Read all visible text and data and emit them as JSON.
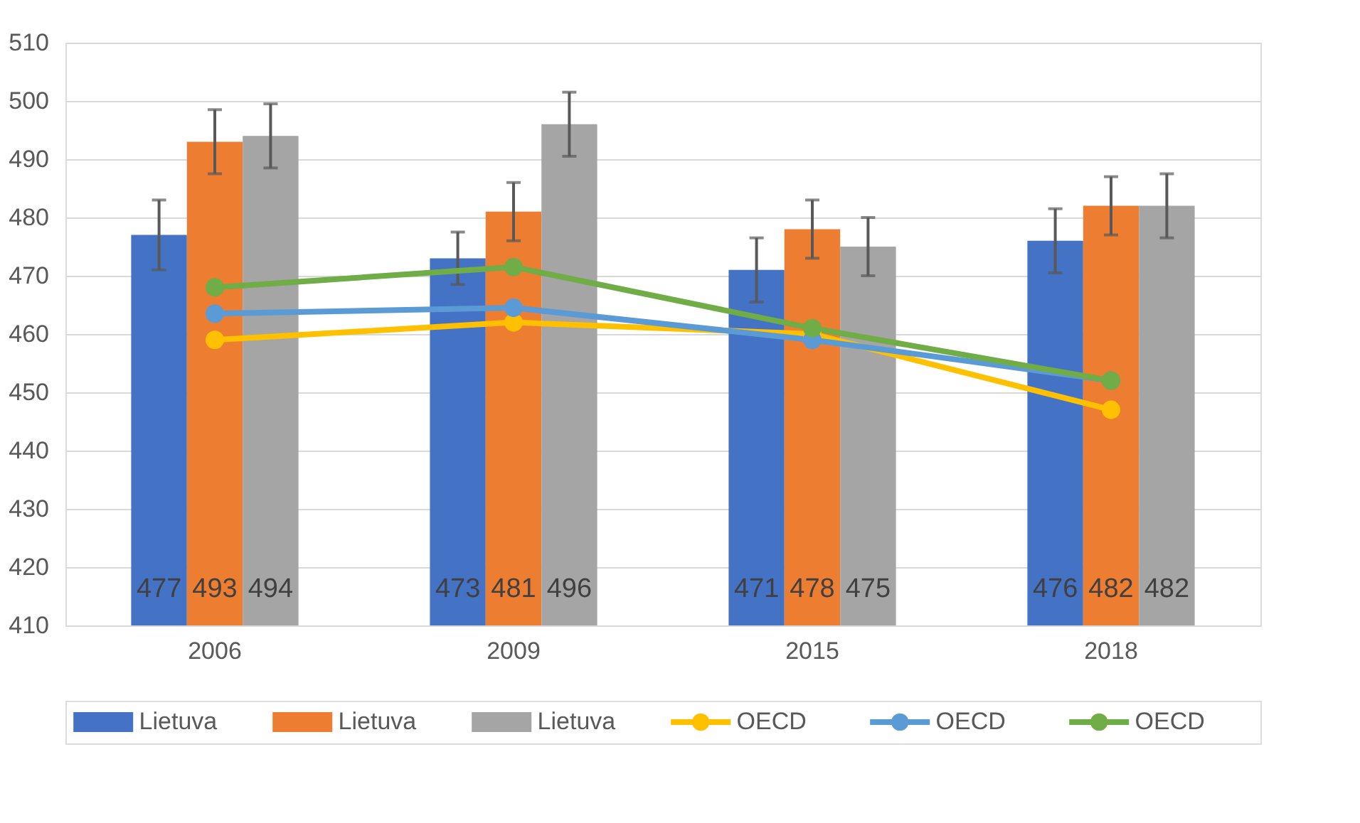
{
  "chart_data": {
    "type": "bar",
    "categories": [
      "2006",
      "2009",
      "2015",
      "2018"
    ],
    "series": [
      {
        "name": "Lietuva",
        "color": "#4472c4",
        "values": [
          477,
          473,
          471,
          476
        ],
        "errors": [
          6,
          4.5,
          5.5,
          5.5
        ],
        "value_labels": [
          "477",
          "473",
          "471",
          "476"
        ]
      },
      {
        "name": "Lietuva",
        "color": "#ed7d31",
        "values": [
          493,
          481,
          478,
          482
        ],
        "errors": [
          5.5,
          5,
          5,
          5
        ],
        "value_labels": [
          "493",
          "481",
          "478",
          "482"
        ]
      },
      {
        "name": "Lietuva",
        "color": "#a5a5a5",
        "values": [
          494,
          496,
          475,
          482
        ],
        "errors": [
          5.5,
          5.5,
          5,
          5.5
        ],
        "value_labels": [
          "494",
          "496",
          "475",
          "482"
        ]
      },
      {
        "name": "OECD",
        "type": "line",
        "color": "#ffc000",
        "values": [
          459,
          462,
          460,
          447
        ]
      },
      {
        "name": "OECD",
        "type": "line",
        "color": "#5b9bd5",
        "values": [
          463.5,
          464.5,
          459,
          452
        ]
      },
      {
        "name": "OECD",
        "type": "line",
        "color": "#70ad47",
        "values": [
          468,
          471.5,
          461,
          452
        ]
      }
    ],
    "ylim": [
      410,
      510
    ],
    "yticks": [
      410,
      420,
      430,
      440,
      450,
      460,
      470,
      480,
      490,
      500,
      510
    ],
    "grid": "y",
    "legend": "bottom",
    "marker": "circle",
    "line_style": "solid"
  }
}
